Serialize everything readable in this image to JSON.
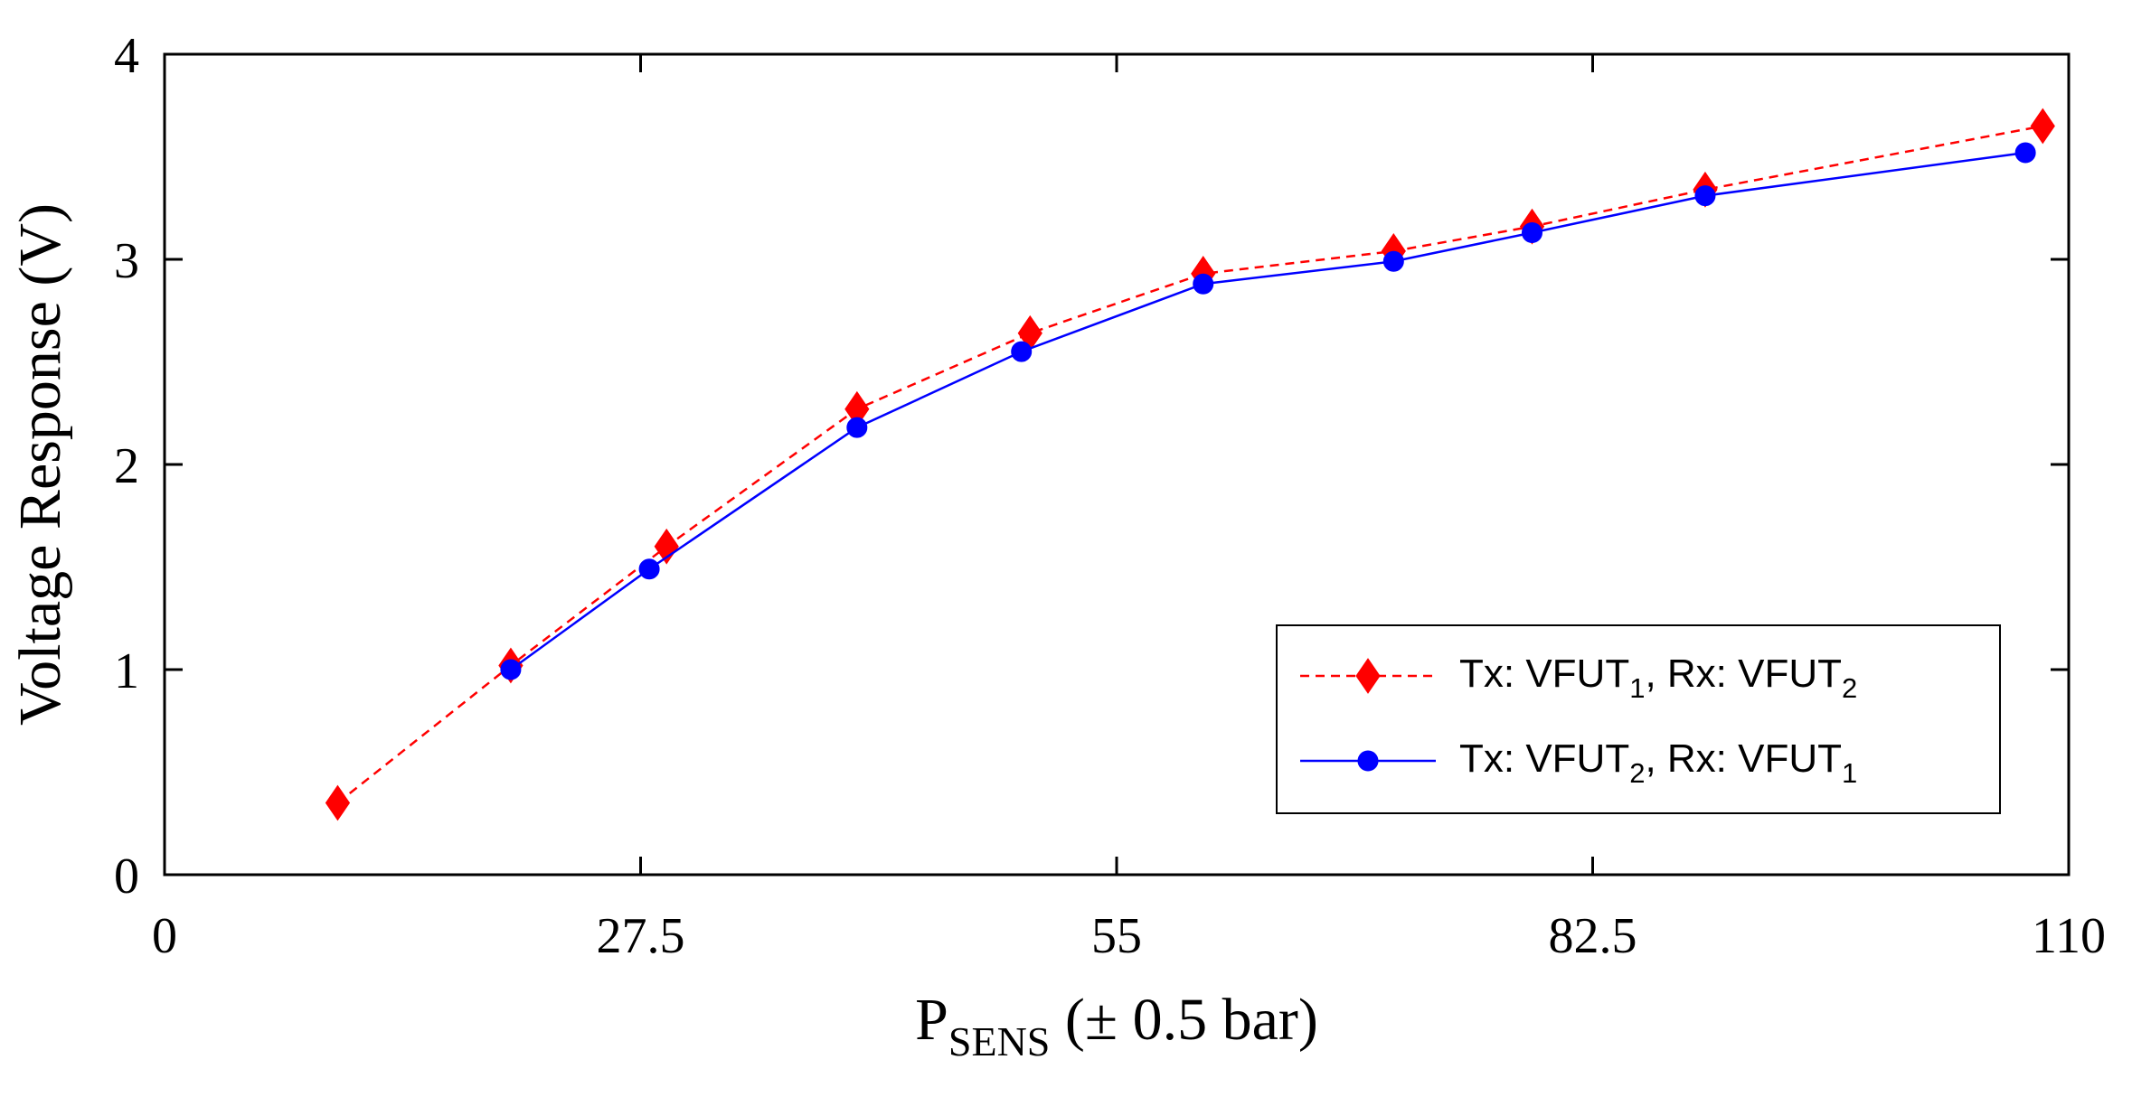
{
  "chart_data": {
    "type": "line",
    "title": "",
    "xlabel": {
      "main": "P",
      "subscript": "SENS",
      "suffix": " (± 0.5 bar)"
    },
    "ylabel": "Voltage Response (V)",
    "xlim": [
      0,
      110
    ],
    "ylim": [
      0,
      4
    ],
    "x_ticks": [
      0,
      27.5,
      55,
      82.5,
      110
    ],
    "x_tick_labels": [
      "0",
      "27.5",
      "55",
      "82.5",
      "110"
    ],
    "y_ticks": [
      0,
      1,
      2,
      3,
      4
    ],
    "y_tick_labels": [
      "0",
      "1",
      "2",
      "3",
      "4"
    ],
    "grid": false,
    "legend_position": "bottom-right",
    "series": [
      {
        "name": "Tx: VFUT1, Rx: VFUT2",
        "legend": {
          "p1": "Tx: VFUT",
          "s1": "1",
          "p2": ", Rx: VFUT",
          "s2": "2"
        },
        "color": "#ff0000",
        "line_style": "dashed",
        "marker": "diamond",
        "x": [
          10,
          20,
          29,
          40,
          50,
          60,
          71,
          79,
          89,
          108.5
        ],
        "y": [
          0.35,
          1.02,
          1.6,
          2.27,
          2.64,
          2.93,
          3.04,
          3.16,
          3.34,
          3.65
        ]
      },
      {
        "name": "Tx: VFUT2, Rx: VFUT1",
        "legend": {
          "p1": "Tx: VFUT",
          "s1": "2",
          "p2": ", Rx: VFUT",
          "s2": "1"
        },
        "color": "#0000ff",
        "line_style": "solid",
        "marker": "circle",
        "x": [
          20,
          28,
          40,
          49.5,
          60,
          71,
          79,
          89,
          107.5
        ],
        "y": [
          1.0,
          1.49,
          2.18,
          2.55,
          2.88,
          2.99,
          3.13,
          3.31,
          3.52
        ]
      }
    ]
  }
}
